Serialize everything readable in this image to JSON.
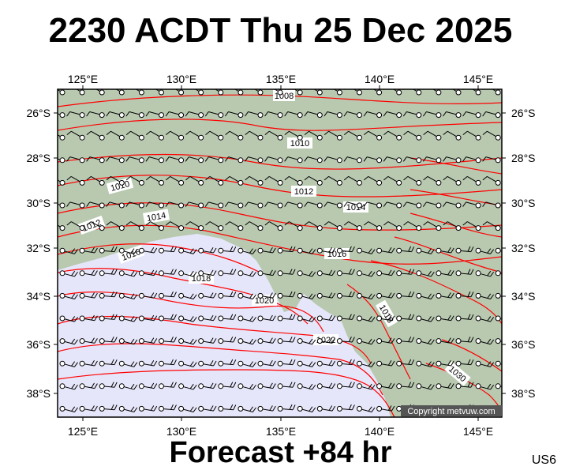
{
  "title": "2230 ACDT Thu 25 Dec 2025",
  "footer": "Forecast +84 hr",
  "region_code": "US6",
  "copyright": "Copyright metvuw.com",
  "colors": {
    "land": "#b8c9b0",
    "sea": "#e6e6fa",
    "isobar": "#ff0000",
    "wind": "#000000",
    "frame": "#000000"
  },
  "axes": {
    "lon_labels": [
      "125°E",
      "130°E",
      "135°E",
      "140°E",
      "145°E"
    ],
    "lat_labels": [
      "26°S",
      "28°S",
      "30°S",
      "32°S",
      "34°S",
      "36°S",
      "38°S"
    ]
  },
  "isobar_labels": [
    "1008",
    "1010",
    "1010",
    "1012",
    "1012",
    "1014",
    "1014",
    "1016",
    "1016",
    "1018",
    "1018",
    "1020",
    "1022",
    "1030"
  ],
  "chart_data": {
    "type": "map",
    "lon_range": [
      124,
      146.3
    ],
    "lat_range": [
      -39,
      -25
    ],
    "isobar_values_hpa": [
      1008,
      1010,
      1012,
      1014,
      1016,
      1018,
      1020,
      1022,
      1030
    ]
  }
}
